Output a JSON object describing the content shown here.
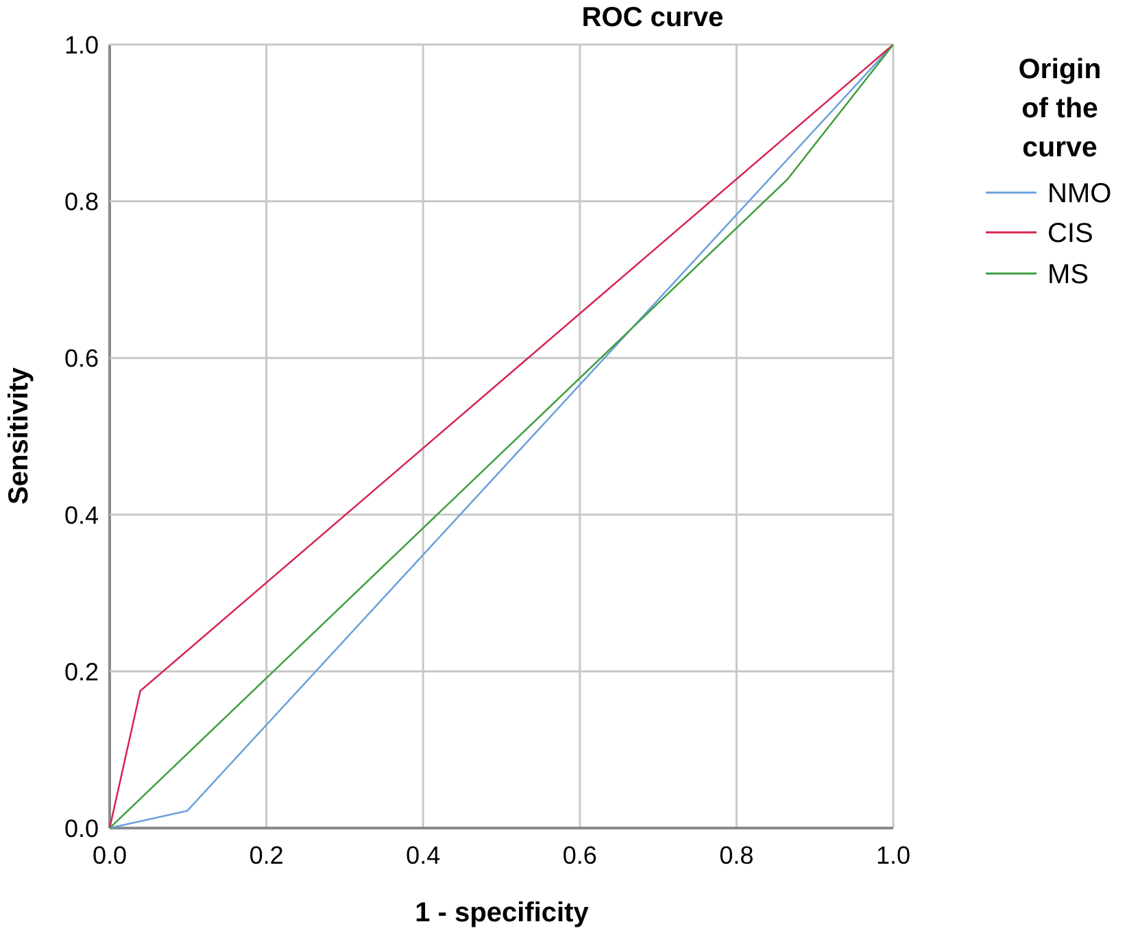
{
  "chart_data": {
    "type": "line",
    "title": "ROC curve",
    "xlabel": "1 - specificity",
    "ylabel": "Sensitivity",
    "xlim": [
      0,
      1
    ],
    "ylim": [
      0,
      1
    ],
    "xticks": [
      "0.0",
      "0.2",
      "0.4",
      "0.6",
      "0.8",
      "1.0"
    ],
    "yticks": [
      "0.0",
      "0.2",
      "0.4",
      "0.6",
      "0.8",
      "1.0"
    ],
    "grid": true,
    "legend": {
      "title_lines": [
        "Origin",
        "of the",
        "curve"
      ],
      "placement": "right"
    },
    "series": [
      {
        "name": "NMO",
        "color": "#6a9fdc",
        "x": [
          0,
          0.099,
          1
        ],
        "y": [
          0,
          0.022,
          1
        ]
      },
      {
        "name": "CIS",
        "color": "#d8234f",
        "x": [
          0,
          0.039,
          1
        ],
        "y": [
          0,
          0.175,
          1
        ]
      },
      {
        "name": "MS",
        "color": "#3e9e3e",
        "x": [
          0,
          0.865,
          1
        ],
        "y": [
          0,
          0.828,
          1
        ]
      }
    ]
  }
}
